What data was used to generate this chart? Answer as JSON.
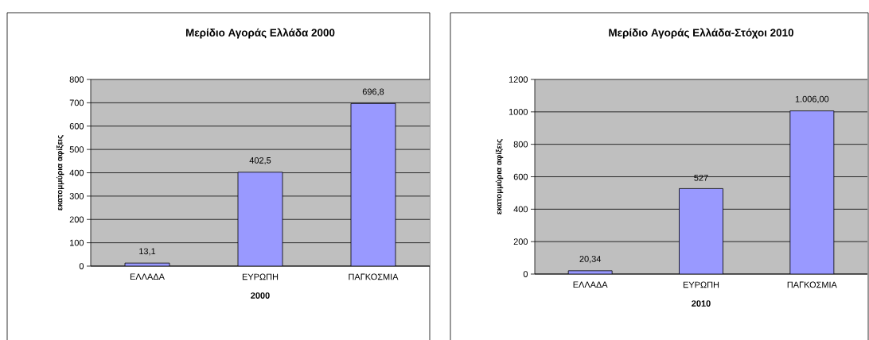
{
  "chart_data": [
    {
      "type": "bar",
      "title": "Μερίδιο Αγοράς Ελλάδα 2000",
      "xlabel": "2000",
      "ylabel": "εκατομμύρια αφίξεις",
      "categories": [
        "ΕΛΛΑΔΑ",
        "ΕΥΡΩΠΗ",
        "ΠΑΓΚΟΣΜΙΑ"
      ],
      "values": [
        13.1,
        402.5,
        696.8
      ],
      "value_labels": [
        "13,1",
        "402,5",
        "696,8"
      ],
      "color": "#9999ff",
      "ylim": [
        0,
        800
      ],
      "yticks": [
        0,
        100,
        200,
        300,
        400,
        500,
        600,
        700,
        800
      ],
      "grid": "y"
    },
    {
      "type": "bar",
      "title": "Μερίδιο Αγοράς Ελλάδα-Στόχοι 2010",
      "xlabel": "2010",
      "ylabel": "εκατομμύρια αφίξεις",
      "categories": [
        "ΕΛΛΑΔΑ",
        "ΕΥΡΩΠΗ",
        "ΠΑΓΚΟΣΜΙΑ"
      ],
      "values": [
        20.34,
        527,
        1006
      ],
      "value_labels": [
        "20,34",
        "527",
        "1.006,00"
      ],
      "color": "#9999ff",
      "ylim": [
        0,
        1200
      ],
      "yticks": [
        0,
        200,
        400,
        600,
        800,
        1000,
        1200
      ],
      "grid": "y"
    }
  ]
}
